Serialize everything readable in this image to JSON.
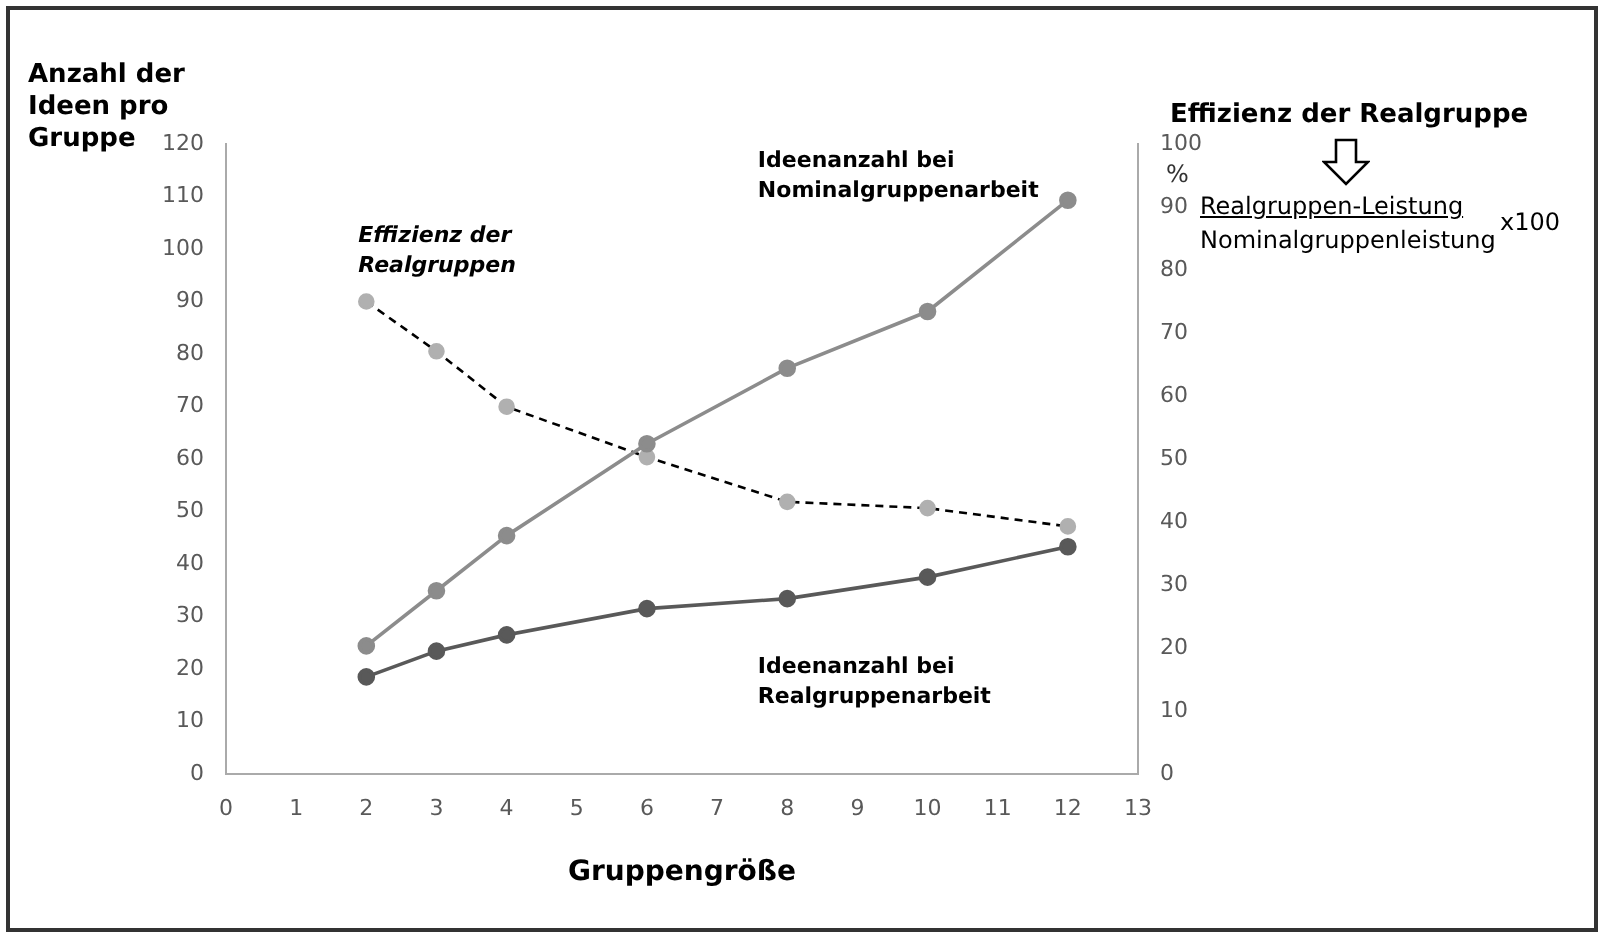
{
  "chart_data": {
    "type": "line",
    "xlabel": "Gruppengröße",
    "ylabel": "Anzahl der Ideen pro Gruppe",
    "y2label": "%",
    "x": [
      2,
      3,
      4,
      6,
      8,
      10,
      12
    ],
    "series": [
      {
        "name": "Ideenanzahl bei Nominalgruppenarbeit",
        "color": "#8c8c8c",
        "values": [
          24.4,
          34.9,
          45.4,
          62.9,
          77.3,
          88.1,
          109.3
        ]
      },
      {
        "name": "Ideenanzahl bei Realgruppenarbeit",
        "color": "#595959",
        "values": [
          18.5,
          23.4,
          26.5,
          31.5,
          33.4,
          37.5,
          43.3
        ]
      },
      {
        "name": "Effizienz der Realgruppen",
        "color": "#000000",
        "axis": "y2",
        "line_style": "dashed",
        "values": [
          75,
          67.1,
          58.3,
          50.3,
          43.2,
          42.2,
          39.3
        ]
      }
    ],
    "xlim": [
      0,
      13
    ],
    "xticks": [
      0,
      1,
      2,
      3,
      4,
      5,
      6,
      7,
      8,
      9,
      10,
      11,
      12,
      13
    ],
    "ylim": [
      0,
      120
    ],
    "yticks": [
      0,
      10,
      20,
      30,
      40,
      50,
      60,
      70,
      80,
      90,
      100,
      110,
      120
    ],
    "y2lim": [
      0,
      100
    ],
    "y2ticks": [
      0,
      10,
      20,
      30,
      40,
      50,
      60,
      70,
      80,
      90,
      100
    ],
    "grid": false,
    "legend": false,
    "marker": "circle",
    "line_style": "solid",
    "annotations": [
      "Effizienz der Realgruppe",
      "Realgruppen-Leistung",
      "Nominalgruppenleistung",
      "x100"
    ]
  }
}
